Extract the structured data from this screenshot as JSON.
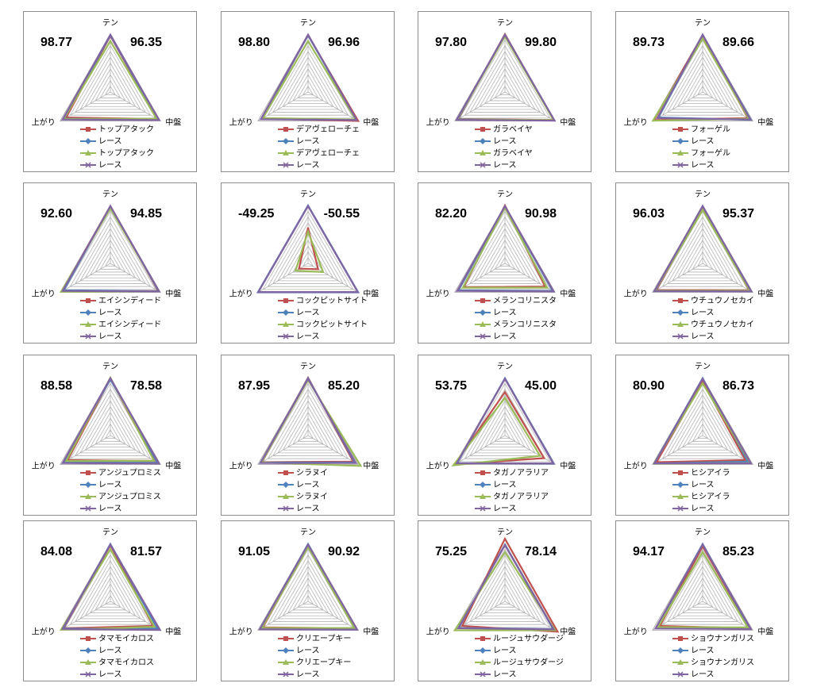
{
  "chart_data": [
    {
      "type": "radar",
      "axes": [
        "テン",
        "中盤",
        "上がり"
      ],
      "scores": [
        98.77,
        96.35
      ],
      "score_labels": [
        "98.77",
        "96.35"
      ],
      "rlim": [
        0,
        100
      ],
      "rticks": [
        10,
        20,
        30,
        40,
        50,
        60,
        70,
        80,
        90,
        100
      ],
      "series": [
        {
          "name": "トップアタック",
          "color": "#c0504d",
          "values": [
            97,
            93,
            88
          ]
        },
        {
          "name": "レース",
          "color": "#4f81bd",
          "values": [
            98,
            95,
            92
          ]
        },
        {
          "name": "トップアタック",
          "color": "#9bbb59",
          "values": [
            88,
            92,
            93
          ]
        },
        {
          "name": "レース",
          "color": "#8064a2",
          "values": [
            99,
            97,
            95
          ]
        }
      ]
    },
    {
      "type": "radar",
      "axes": [
        "テン",
        "中盤",
        "上がり"
      ],
      "scores": [
        98.8,
        96.96
      ],
      "score_labels": [
        "98.80",
        "96.96"
      ],
      "rlim": [
        0,
        100
      ],
      "rticks": [
        10,
        20,
        30,
        40,
        50,
        60,
        70,
        80,
        90,
        100
      ],
      "series": [
        {
          "name": "デアヴェローチェ",
          "color": "#c0504d",
          "values": [
            98,
            100,
            92
          ]
        },
        {
          "name": "レース",
          "color": "#4f81bd",
          "values": [
            98,
            96,
            93
          ]
        },
        {
          "name": "デアヴェローチェ",
          "color": "#9bbb59",
          "values": [
            88,
            95,
            90
          ]
        },
        {
          "name": "レース",
          "color": "#8064a2",
          "values": [
            99,
            97,
            94
          ]
        }
      ]
    },
    {
      "type": "radar",
      "axes": [
        "テン",
        "中盤",
        "上がり"
      ],
      "scores": [
        97.8,
        99.8
      ],
      "score_labels": [
        "97.80",
        "99.80"
      ],
      "rlim": [
        0,
        100
      ],
      "rticks": [
        10,
        20,
        30,
        40,
        50,
        60,
        70,
        80,
        90,
        100
      ],
      "series": [
        {
          "name": "ガラベイヤ",
          "color": "#c0504d",
          "values": [
            100,
            97,
            93
          ]
        },
        {
          "name": "レース",
          "color": "#4f81bd",
          "values": [
            98,
            98,
            94
          ]
        },
        {
          "name": "ガラベイヤ",
          "color": "#9bbb59",
          "values": [
            96,
            97,
            95
          ]
        },
        {
          "name": "レース",
          "color": "#8064a2",
          "values": [
            99,
            99,
            96
          ]
        }
      ]
    },
    {
      "type": "radar",
      "axes": [
        "テン",
        "中盤",
        "上がり"
      ],
      "scores": [
        89.73,
        89.66
      ],
      "score_labels": [
        "89.73",
        "89.66"
      ],
      "rlim": [
        0,
        100
      ],
      "rticks": [
        10,
        20,
        30,
        40,
        50,
        60,
        70,
        80,
        90,
        100
      ],
      "series": [
        {
          "name": "フォーゲル",
          "color": "#c0504d",
          "values": [
            98,
            90,
            97
          ]
        },
        {
          "name": "レース",
          "color": "#4f81bd",
          "values": [
            99,
            96,
            88
          ]
        },
        {
          "name": "フォーゲル",
          "color": "#9bbb59",
          "values": [
            92,
            92,
            99
          ]
        },
        {
          "name": "レース",
          "color": "#8064a2",
          "values": [
            99,
            95,
            90
          ]
        }
      ]
    },
    {
      "type": "radar",
      "axes": [
        "テン",
        "中盤",
        "上がり"
      ],
      "scores": [
        92.6,
        94.85
      ],
      "score_labels": [
        "92.60",
        "94.85"
      ],
      "rlim": [
        0,
        100
      ],
      "rticks": [
        10,
        20,
        30,
        40,
        50,
        60,
        70,
        80,
        90,
        100
      ],
      "series": [
        {
          "name": "エイシンディード",
          "color": "#c0504d",
          "values": [
            99,
            95,
            96
          ]
        },
        {
          "name": "レース",
          "color": "#4f81bd",
          "values": [
            98,
            96,
            93
          ]
        },
        {
          "name": "エイシンディード",
          "color": "#9bbb59",
          "values": [
            95,
            97,
            98
          ]
        },
        {
          "name": "レース",
          "color": "#8064a2",
          "values": [
            99,
            97,
            95
          ]
        }
      ]
    },
    {
      "type": "radar",
      "axes": [
        "テン",
        "中盤",
        "上がり"
      ],
      "scores": [
        -49.25,
        -50.55
      ],
      "score_labels": [
        "-49.25",
        "-50.55"
      ],
      "rlim": [
        0,
        100
      ],
      "rticks": [
        10,
        20,
        30,
        40,
        50,
        60,
        70,
        80,
        90,
        100
      ],
      "series": [
        {
          "name": "コックピットサイト",
          "color": "#c0504d",
          "values": [
            62,
            20,
            18
          ]
        },
        {
          "name": "レース",
          "color": "#4f81bd",
          "values": [
            100,
            100,
            100
          ]
        },
        {
          "name": "コックピットサイト",
          "color": "#9bbb59",
          "values": [
            55,
            30,
            25
          ]
        },
        {
          "name": "レース",
          "color": "#8064a2",
          "values": [
            99,
            99,
            99
          ]
        }
      ]
    },
    {
      "type": "radar",
      "axes": [
        "テン",
        "中盤",
        "上がり"
      ],
      "scores": [
        82.2,
        90.98
      ],
      "score_labels": [
        "82.20",
        "90.98"
      ],
      "rlim": [
        0,
        100
      ],
      "rticks": [
        10,
        20,
        30,
        40,
        50,
        60,
        70,
        80,
        90,
        100
      ],
      "series": [
        {
          "name": "メランコリニスタ",
          "color": "#c0504d",
          "values": [
            100,
            80,
            82
          ]
        },
        {
          "name": "レース",
          "color": "#4f81bd",
          "values": [
            98,
            95,
            93
          ]
        },
        {
          "name": "メランコリニスタ",
          "color": "#9bbb59",
          "values": [
            96,
            84,
            84
          ]
        },
        {
          "name": "レース",
          "color": "#8064a2",
          "values": [
            99,
            97,
            95
          ]
        }
      ]
    },
    {
      "type": "radar",
      "axes": [
        "テン",
        "中盤",
        "上がり"
      ],
      "scores": [
        96.03,
        95.37
      ],
      "score_labels": [
        "96.03",
        "95.37"
      ],
      "rlim": [
        0,
        100
      ],
      "rticks": [
        10,
        20,
        30,
        40,
        50,
        60,
        70,
        80,
        90,
        100
      ],
      "series": [
        {
          "name": "ウチュウノセカイ",
          "color": "#c0504d",
          "values": [
            98,
            93,
            92
          ]
        },
        {
          "name": "レース",
          "color": "#4f81bd",
          "values": [
            99,
            95,
            94
          ]
        },
        {
          "name": "ウチュウノセカイ",
          "color": "#9bbb59",
          "values": [
            92,
            94,
            95
          ]
        },
        {
          "name": "レース",
          "color": "#8064a2",
          "values": [
            99,
            97,
            96
          ]
        }
      ]
    },
    {
      "type": "radar",
      "axes": [
        "テン",
        "中盤",
        "上がり"
      ],
      "scores": [
        88.58,
        78.58
      ],
      "score_labels": [
        "88.58",
        "78.58"
      ],
      "rlim": [
        0,
        100
      ],
      "rticks": [
        10,
        20,
        30,
        40,
        50,
        60,
        70,
        80,
        90,
        100
      ],
      "series": [
        {
          "name": "アンジュプロミス",
          "color": "#c0504d",
          "values": [
            98,
            88,
            85
          ]
        },
        {
          "name": "レース",
          "color": "#4f81bd",
          "values": [
            97,
            94,
            93
          ]
        },
        {
          "name": "アンジュプロミス",
          "color": "#9bbb59",
          "values": [
            100,
            87,
            88
          ]
        },
        {
          "name": "レース",
          "color": "#8064a2",
          "values": [
            99,
            97,
            95
          ]
        }
      ]
    },
    {
      "type": "radar",
      "axes": [
        "テン",
        "中盤",
        "上がり"
      ],
      "scores": [
        87.95,
        85.2
      ],
      "score_labels": [
        "87.95",
        "85.20"
      ],
      "rlim": [
        0,
        100
      ],
      "rticks": [
        10,
        20,
        30,
        40,
        50,
        60,
        70,
        80,
        90,
        100
      ],
      "series": [
        {
          "name": "シラヌイ",
          "color": "#c0504d",
          "values": [
            100,
            90,
            92
          ]
        },
        {
          "name": "レース",
          "color": "#4f81bd",
          "values": [
            99,
            93,
            93
          ]
        },
        {
          "name": "シラヌイ",
          "color": "#9bbb59",
          "values": [
            96,
            105,
            93
          ]
        },
        {
          "name": "レース",
          "color": "#8064a2",
          "values": [
            98,
            95,
            95
          ]
        }
      ]
    },
    {
      "type": "radar",
      "axes": [
        "テン",
        "中盤",
        "上がり"
      ],
      "scores": [
        53.75,
        45
      ],
      "score_labels": [
        "53.75",
        "45.00"
      ],
      "rlim": [
        0,
        100
      ],
      "rticks": [
        10,
        20,
        30,
        40,
        50,
        60,
        70,
        80,
        90,
        100
      ],
      "series": [
        {
          "name": "タガノアラリア",
          "color": "#c0504d",
          "values": [
            75,
            78,
            100
          ]
        },
        {
          "name": "レース",
          "color": "#4f81bd",
          "values": [
            99,
            97,
            95
          ]
        },
        {
          "name": "タガノアラリア",
          "color": "#9bbb59",
          "values": [
            65,
            70,
            103
          ]
        },
        {
          "name": "レース",
          "color": "#8064a2",
          "values": [
            98,
            96,
            96
          ]
        }
      ]
    },
    {
      "type": "radar",
      "axes": [
        "テン",
        "中盤",
        "上がり"
      ],
      "scores": [
        80.9,
        86.73
      ],
      "score_labels": [
        "80.90",
        "86.73"
      ],
      "rlim": [
        0,
        100
      ],
      "rticks": [
        10,
        20,
        30,
        40,
        50,
        60,
        70,
        80,
        90,
        100
      ],
      "series": [
        {
          "name": "ヒシアイラ",
          "color": "#c0504d",
          "values": [
            93,
            85,
            92
          ]
        },
        {
          "name": "レース",
          "color": "#4f81bd",
          "values": [
            99,
            90,
            96
          ]
        },
        {
          "name": "ヒシアイラ",
          "color": "#9bbb59",
          "values": [
            90,
            95,
            97
          ]
        },
        {
          "name": "レース",
          "color": "#8064a2",
          "values": [
            98,
            96,
            96
          ]
        }
      ]
    },
    {
      "type": "radar",
      "axes": [
        "テン",
        "中盤",
        "上がり"
      ],
      "scores": [
        84.08,
        81.57
      ],
      "score_labels": [
        "84.08",
        "81.57"
      ],
      "rlim": [
        0,
        100
      ],
      "rticks": [
        10,
        20,
        30,
        40,
        50,
        60,
        70,
        80,
        90,
        100
      ],
      "series": [
        {
          "name": "タマモイカロス",
          "color": "#c0504d",
          "values": [
            97,
            85,
            93
          ]
        },
        {
          "name": "レース",
          "color": "#4f81bd",
          "values": [
            99,
            94,
            94
          ]
        },
        {
          "name": "タマモイカロス",
          "color": "#9bbb59",
          "values": [
            90,
            88,
            98
          ]
        },
        {
          "name": "レース",
          "color": "#8064a2",
          "values": [
            98,
            99,
            95
          ]
        }
      ]
    },
    {
      "type": "radar",
      "axes": [
        "テン",
        "中盤",
        "上がり"
      ],
      "scores": [
        91.05,
        90.92
      ],
      "score_labels": [
        "91.05",
        "90.92"
      ],
      "rlim": [
        0,
        100
      ],
      "rticks": [
        10,
        20,
        30,
        40,
        50,
        60,
        70,
        80,
        90,
        100
      ],
      "series": [
        {
          "name": "クリエープキー",
          "color": "#c0504d",
          "values": [
            97,
            93,
            90
          ]
        },
        {
          "name": "レース",
          "color": "#4f81bd",
          "values": [
            99,
            96,
            95
          ]
        },
        {
          "name": "クリエープキー",
          "color": "#9bbb59",
          "values": [
            94,
            92,
            92
          ]
        },
        {
          "name": "レース",
          "color": "#8064a2",
          "values": [
            98,
            98,
            96
          ]
        }
      ]
    },
    {
      "type": "radar",
      "axes": [
        "テン",
        "中盤",
        "上がり"
      ],
      "scores": [
        75.25,
        78.14
      ],
      "score_labels": [
        "75.25",
        "78.14"
      ],
      "rlim": [
        0,
        100
      ],
      "rticks": [
        10,
        20,
        30,
        40,
        50,
        60,
        70,
        80,
        90,
        100
      ],
      "series": [
        {
          "name": "ルージュサウダージ",
          "color": "#c0504d",
          "values": [
            108,
            105,
            85
          ]
        },
        {
          "name": "レース",
          "color": "#4f81bd",
          "values": [
            98,
            96,
            92
          ]
        },
        {
          "name": "ルージュサウダージ",
          "color": "#9bbb59",
          "values": [
            85,
            100,
            100
          ]
        },
        {
          "name": "レース",
          "color": "#8064a2",
          "values": [
            97,
            97,
            93
          ]
        }
      ]
    },
    {
      "type": "radar",
      "axes": [
        "テン",
        "中盤",
        "上がり"
      ],
      "scores": [
        94.17,
        85.23
      ],
      "score_labels": [
        "94.17",
        "85.23"
      ],
      "rlim": [
        0,
        100
      ],
      "rticks": [
        10,
        20,
        30,
        40,
        50,
        60,
        70,
        80,
        90,
        100
      ],
      "series": [
        {
          "name": "ショウナンガリス",
          "color": "#c0504d",
          "values": [
            95,
            93,
            85
          ]
        },
        {
          "name": "レース",
          "color": "#4f81bd",
          "values": [
            99,
            94,
            92
          ]
        },
        {
          "name": "ショウナンガリス",
          "color": "#9bbb59",
          "values": [
            85,
            90,
            89
          ]
        },
        {
          "name": "レース",
          "color": "#8064a2",
          "values": [
            98,
            96,
            94
          ]
        }
      ]
    }
  ]
}
